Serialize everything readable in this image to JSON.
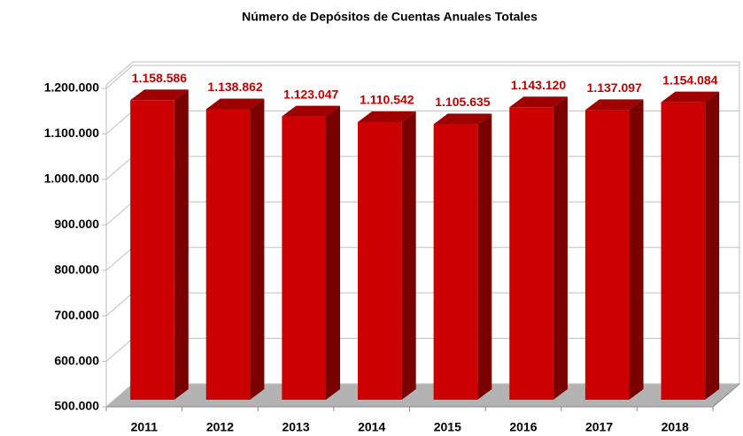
{
  "chart_data": {
    "type": "bar3d",
    "title": "Número de Depósitos de Cuentas Anuales Totales",
    "categories": [
      "2011",
      "2012",
      "2013",
      "2014",
      "2015",
      "2016",
      "2017",
      "2018"
    ],
    "values": [
      1158586,
      1138862,
      1123047,
      1110542,
      1105635,
      1143120,
      1137097,
      1154084
    ],
    "value_labels": [
      "1.158.586",
      "1.138.862",
      "1.123.047",
      "1.110.542",
      "1.105.635",
      "1.143.120",
      "1.137.097",
      "1.154.084"
    ],
    "color": "#cc0000",
    "ylim": [
      500000,
      1200000
    ],
    "yticks": [
      {
        "value": 500000,
        "label": "500.000"
      },
      {
        "value": 600000,
        "label": "600.000"
      },
      {
        "value": 700000,
        "label": "700.000"
      },
      {
        "value": 800000,
        "label": "800.000"
      },
      {
        "value": 900000,
        "label": "900.000"
      },
      {
        "value": 1000000,
        "label": "1.000.000"
      },
      {
        "value": 1100000,
        "label": "1.100.000"
      },
      {
        "value": 1200000,
        "label": "1.200.000"
      }
    ],
    "grid": true
  }
}
